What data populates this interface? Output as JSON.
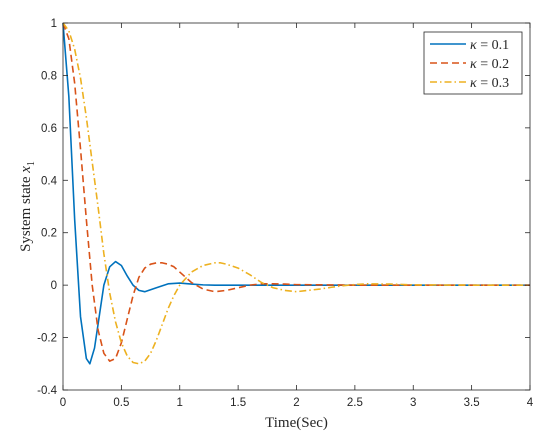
{
  "chart_data": {
    "type": "line",
    "xlabel": "Time(Sec)",
    "ylabel_main": "System state ",
    "ylabel_math": "x",
    "ylabel_sub": "1",
    "xlim": [
      0,
      4
    ],
    "ylim": [
      -0.4,
      1
    ],
    "xticks": [
      0,
      0.5,
      1,
      1.5,
      2,
      2.5,
      3,
      3.5,
      4
    ],
    "xtick_labels": [
      "0",
      "0.5",
      "1",
      "1.5",
      "2",
      "2.5",
      "3",
      "3.5",
      "4"
    ],
    "yticks": [
      -0.4,
      -0.2,
      0,
      0.2,
      0.4,
      0.6,
      0.8,
      1
    ],
    "ytick_labels": [
      "-0.4",
      "-0.2",
      "0",
      "0.2",
      "0.4",
      "0.6",
      "0.8",
      "1"
    ],
    "grid": false,
    "legend_position": "top-right",
    "series": [
      {
        "name": "κ = 0.1",
        "color": "#0072BD",
        "style": "solid",
        "x": [
          0,
          0.05,
          0.1,
          0.15,
          0.2,
          0.23,
          0.27,
          0.3,
          0.35,
          0.4,
          0.45,
          0.5,
          0.55,
          0.6,
          0.65,
          0.7,
          0.8,
          0.9,
          1.0,
          1.1,
          1.2,
          1.3,
          1.4,
          1.5,
          1.6,
          1.7,
          1.8,
          1.9,
          2.0,
          2.5,
          3.0,
          3.5,
          4.0
        ],
        "y": [
          1.0,
          0.72,
          0.25,
          -0.12,
          -0.28,
          -0.3,
          -0.24,
          -0.15,
          0.0,
          0.07,
          0.09,
          0.075,
          0.035,
          0.0,
          -0.02,
          -0.025,
          -0.01,
          0.005,
          0.008,
          0.004,
          0.001,
          0.0,
          0.0,
          0.0,
          0.0,
          0.0,
          0.0,
          0.0,
          0.0,
          0.0,
          0.0,
          0.0,
          0.0
        ]
      },
      {
        "name": "κ = 0.2",
        "color": "#D95319",
        "style": "dashed",
        "x": [
          0,
          0.05,
          0.1,
          0.15,
          0.2,
          0.25,
          0.3,
          0.35,
          0.4,
          0.45,
          0.5,
          0.55,
          0.6,
          0.65,
          0.7,
          0.75,
          0.8,
          0.85,
          0.9,
          0.95,
          1.0,
          1.1,
          1.2,
          1.3,
          1.4,
          1.5,
          1.6,
          1.7,
          1.8,
          1.9,
          2.0,
          2.5,
          3.0,
          3.5,
          4.0
        ],
        "y": [
          1.0,
          0.94,
          0.77,
          0.52,
          0.25,
          0.0,
          -0.17,
          -0.26,
          -0.29,
          -0.28,
          -0.22,
          -0.13,
          -0.04,
          0.03,
          0.065,
          0.08,
          0.085,
          0.085,
          0.08,
          0.07,
          0.05,
          0.01,
          -0.015,
          -0.025,
          -0.02,
          -0.01,
          0.0,
          0.005,
          0.005,
          0.004,
          0.002,
          0.0,
          0.0,
          0.0,
          0.0
        ]
      },
      {
        "name": "κ = 0.3",
        "color": "#EDB120",
        "style": "dashdot",
        "x": [
          0,
          0.05,
          0.1,
          0.15,
          0.2,
          0.25,
          0.3,
          0.35,
          0.4,
          0.45,
          0.5,
          0.55,
          0.6,
          0.65,
          0.7,
          0.75,
          0.8,
          0.85,
          0.9,
          0.95,
          1.0,
          1.1,
          1.2,
          1.3,
          1.35,
          1.4,
          1.5,
          1.6,
          1.7,
          1.8,
          1.9,
          2.0,
          2.1,
          2.2,
          2.3,
          2.4,
          2.5,
          2.6,
          2.8,
          3.0,
          3.5,
          4.0
        ],
        "y": [
          1.0,
          0.97,
          0.9,
          0.79,
          0.64,
          0.47,
          0.3,
          0.12,
          -0.03,
          -0.14,
          -0.22,
          -0.27,
          -0.295,
          -0.3,
          -0.29,
          -0.26,
          -0.21,
          -0.15,
          -0.09,
          -0.04,
          0.0,
          0.05,
          0.075,
          0.085,
          0.085,
          0.08,
          0.065,
          0.04,
          0.01,
          -0.01,
          -0.02,
          -0.025,
          -0.02,
          -0.015,
          -0.008,
          -0.002,
          0.002,
          0.005,
          0.004,
          0.001,
          0.0,
          0.0
        ]
      }
    ]
  }
}
